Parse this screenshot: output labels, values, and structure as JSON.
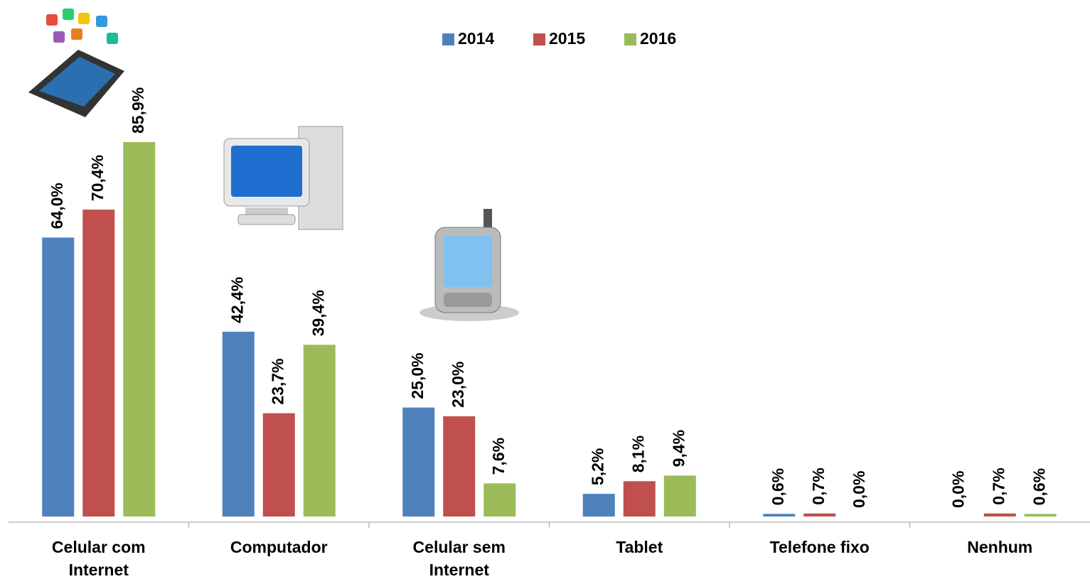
{
  "chart_data": {
    "type": "bar",
    "categories": [
      "Celular com Internet",
      "Computador",
      "Celular sem Internet",
      "Tablet",
      "Telefone fixo",
      "Nenhum"
    ],
    "series": [
      {
        "name": "2014",
        "color": "#4f81bd",
        "values": [
          64.0,
          42.4,
          25.0,
          5.2,
          0.6,
          0.0
        ],
        "value_labels": [
          "64,0%",
          "42,4%",
          "25,0%",
          "5,2%",
          "0,6%",
          "0,0%"
        ]
      },
      {
        "name": "2015",
        "color": "#c0504d",
        "values": [
          70.4,
          23.7,
          23.0,
          8.1,
          0.7,
          0.7
        ],
        "value_labels": [
          "70,4%",
          "23,7%",
          "23,0%",
          "8,1%",
          "0,7%",
          "0,7%"
        ]
      },
      {
        "name": "2016",
        "color": "#9bbb59",
        "values": [
          85.9,
          39.4,
          7.6,
          9.4,
          0.0,
          0.6
        ],
        "value_labels": [
          "85,9%",
          "39,4%",
          "7,6%",
          "9,4%",
          "0,0%",
          "0,6%"
        ]
      }
    ],
    "legend": "top"
  }
}
